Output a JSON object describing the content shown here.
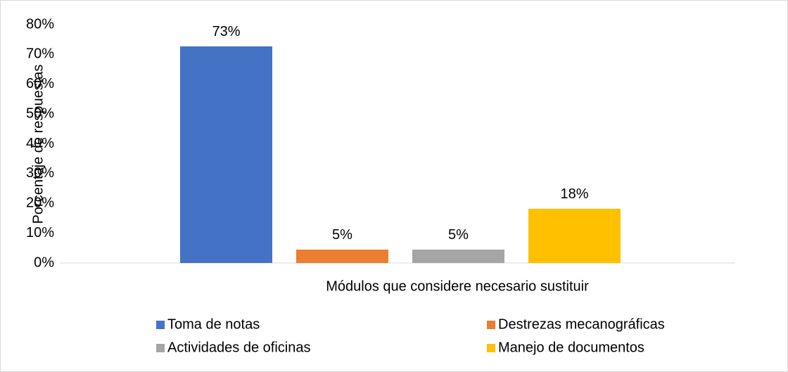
{
  "chart_data": {
    "type": "bar",
    "x_label": "Módulos que considere necesario sustituir",
    "y_label": "Porcentaje de respuestas",
    "series": [
      {
        "name": "Toma de notas",
        "color": "#4472c4",
        "values": [
          72.7
        ],
        "value_labels": [
          "73%"
        ]
      },
      {
        "name": "Destrezas mecanográficas",
        "color": "#ed7d31",
        "values": [
          4.5
        ],
        "value_labels": [
          "5%"
        ]
      },
      {
        "name": "Actividades de oficinas",
        "color": "#a5a5a5",
        "values": [
          4.5
        ],
        "value_labels": [
          "5%"
        ]
      },
      {
        "name": "Manejo de documentos",
        "color": "#ffc000",
        "values": [
          18.2
        ],
        "value_labels": [
          "18%"
        ]
      }
    ],
    "ylim": [
      0,
      80
    ],
    "yticks": [
      {
        "value": 0,
        "label": "0%"
      },
      {
        "value": 10,
        "label": "10%"
      },
      {
        "value": 20,
        "label": "20%"
      },
      {
        "value": 30,
        "label": "30%"
      },
      {
        "value": 40,
        "label": "40%"
      },
      {
        "value": 50,
        "label": "50%"
      },
      {
        "value": 60,
        "label": "60%"
      },
      {
        "value": 70,
        "label": "70%"
      },
      {
        "value": 80,
        "label": "80%"
      }
    ],
    "grid": false,
    "legend": "bottom"
  }
}
